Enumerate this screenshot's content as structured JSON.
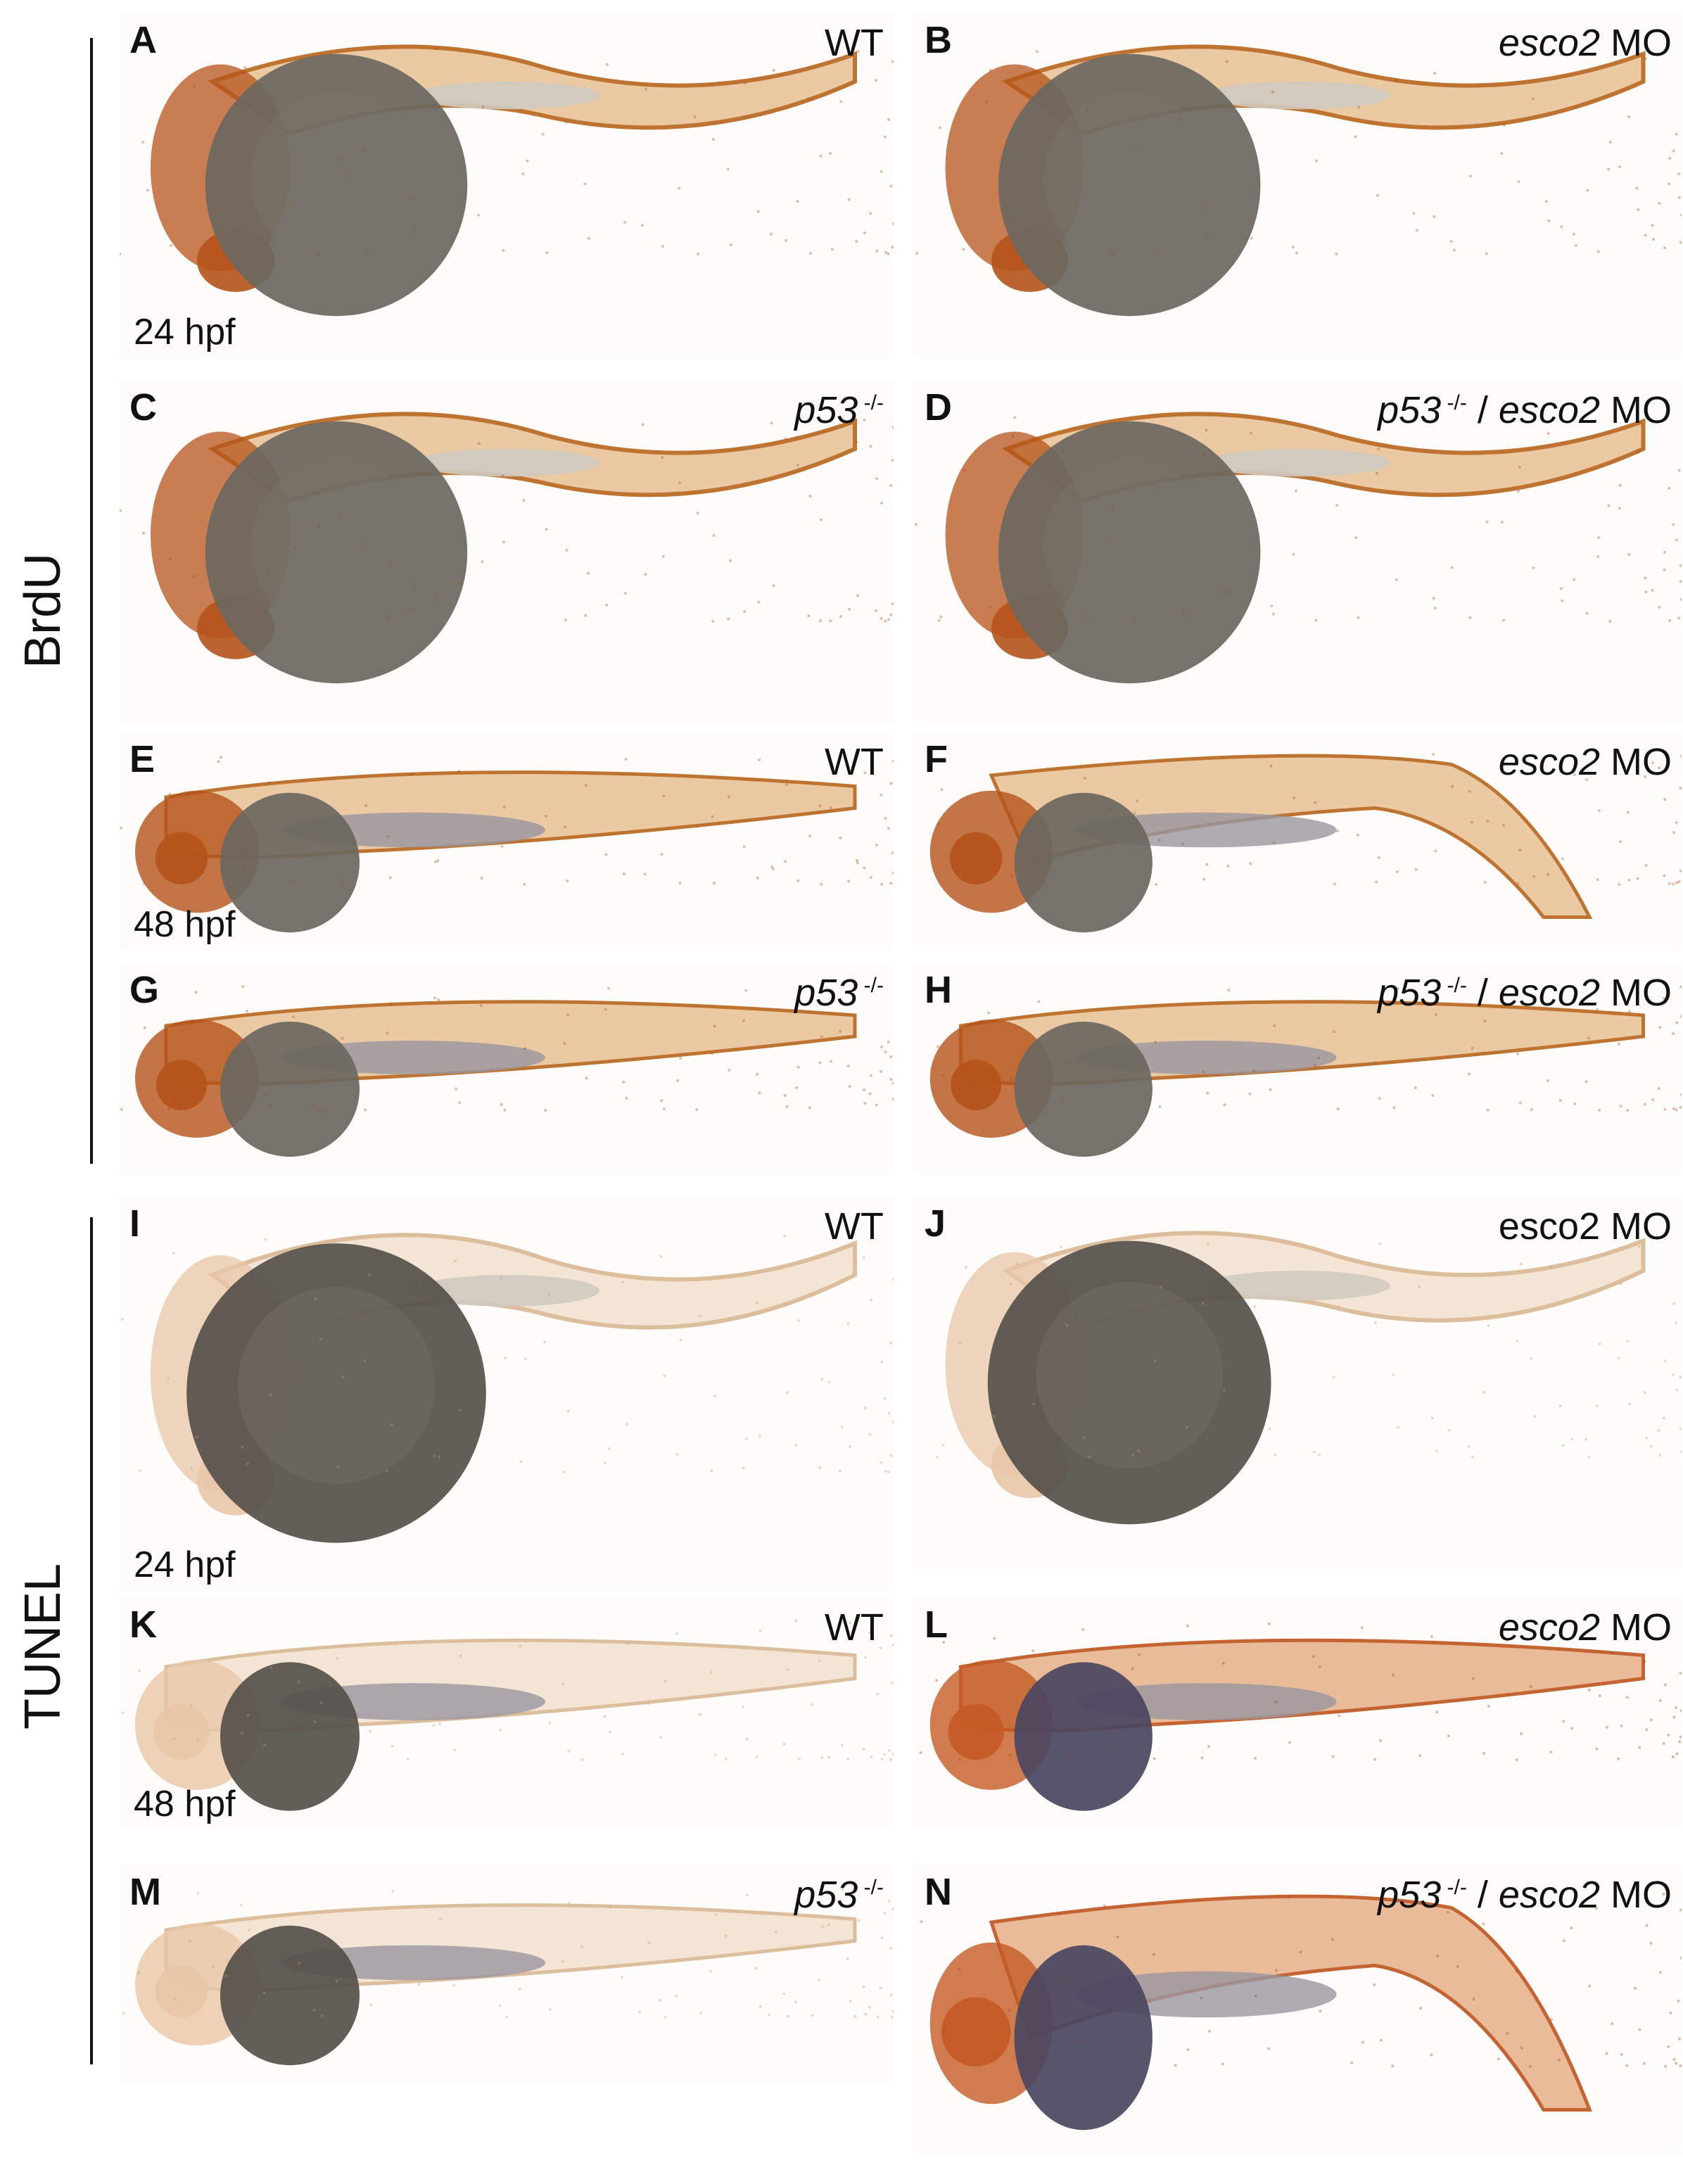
{
  "sections": {
    "brdu": "BrdU",
    "tunel": "TUNEL"
  },
  "panels": [
    {
      "letter": "A",
      "gene": "",
      "suffix": "WT",
      "stage": "24 hpf",
      "stain": "brdu"
    },
    {
      "letter": "B",
      "gene": "esco2",
      "suffix": " MO",
      "stage": "",
      "stain": "brdu"
    },
    {
      "letter": "C",
      "gene": "p53",
      "sup": "-/-",
      "suffix": "",
      "stage": "",
      "stain": "brdu"
    },
    {
      "letter": "D",
      "gene": "p53",
      "sup": "-/-",
      "suffix": " / ",
      "gene2": "esco2",
      "suffix2": " MO",
      "stage": "",
      "stain": "brdu"
    },
    {
      "letter": "E",
      "gene": "",
      "suffix": "WT",
      "stage": "48 hpf",
      "stain": "brdu"
    },
    {
      "letter": "F",
      "gene": "esco2",
      "suffix": " MO",
      "stage": "",
      "stain": "brdu"
    },
    {
      "letter": "G",
      "gene": "p53",
      "sup": "-/-",
      "suffix": "",
      "stage": "",
      "stain": "brdu"
    },
    {
      "letter": "H",
      "gene": "p53",
      "sup": "-/-",
      "suffix": " / ",
      "gene2": "esco2",
      "suffix2": " MO",
      "stage": "",
      "stain": "brdu"
    },
    {
      "letter": "I",
      "gene": "",
      "suffix": "WT",
      "stage": "24 hpf",
      "stain": "tunel-light"
    },
    {
      "letter": "J",
      "gene": "",
      "suffix": "esco2 MO",
      "stage": "",
      "stain": "tunel-light"
    },
    {
      "letter": "K",
      "gene": "",
      "suffix": "WT",
      "stage": "48 hpf",
      "stain": "tunel-light"
    },
    {
      "letter": "L",
      "gene": "esco2",
      "suffix": " MO",
      "stage": "",
      "stain": "tunel-strong"
    },
    {
      "letter": "M",
      "gene": "p53",
      "sup": "-/-",
      "suffix": "",
      "stage": "",
      "stain": "tunel-light"
    },
    {
      "letter": "N",
      "gene": "p53",
      "sup": "-/-",
      "suffix": " / ",
      "gene2": "esco2",
      "suffix2": " MO",
      "stage": "",
      "stain": "tunel-strong"
    }
  ],
  "colors": {
    "brdu_stain": "#b8651c",
    "tunel_strong": "#c0541e",
    "yolk_dark": "#5f5a52",
    "yolk_purple": "#4a4560",
    "background": "#ffffff"
  }
}
